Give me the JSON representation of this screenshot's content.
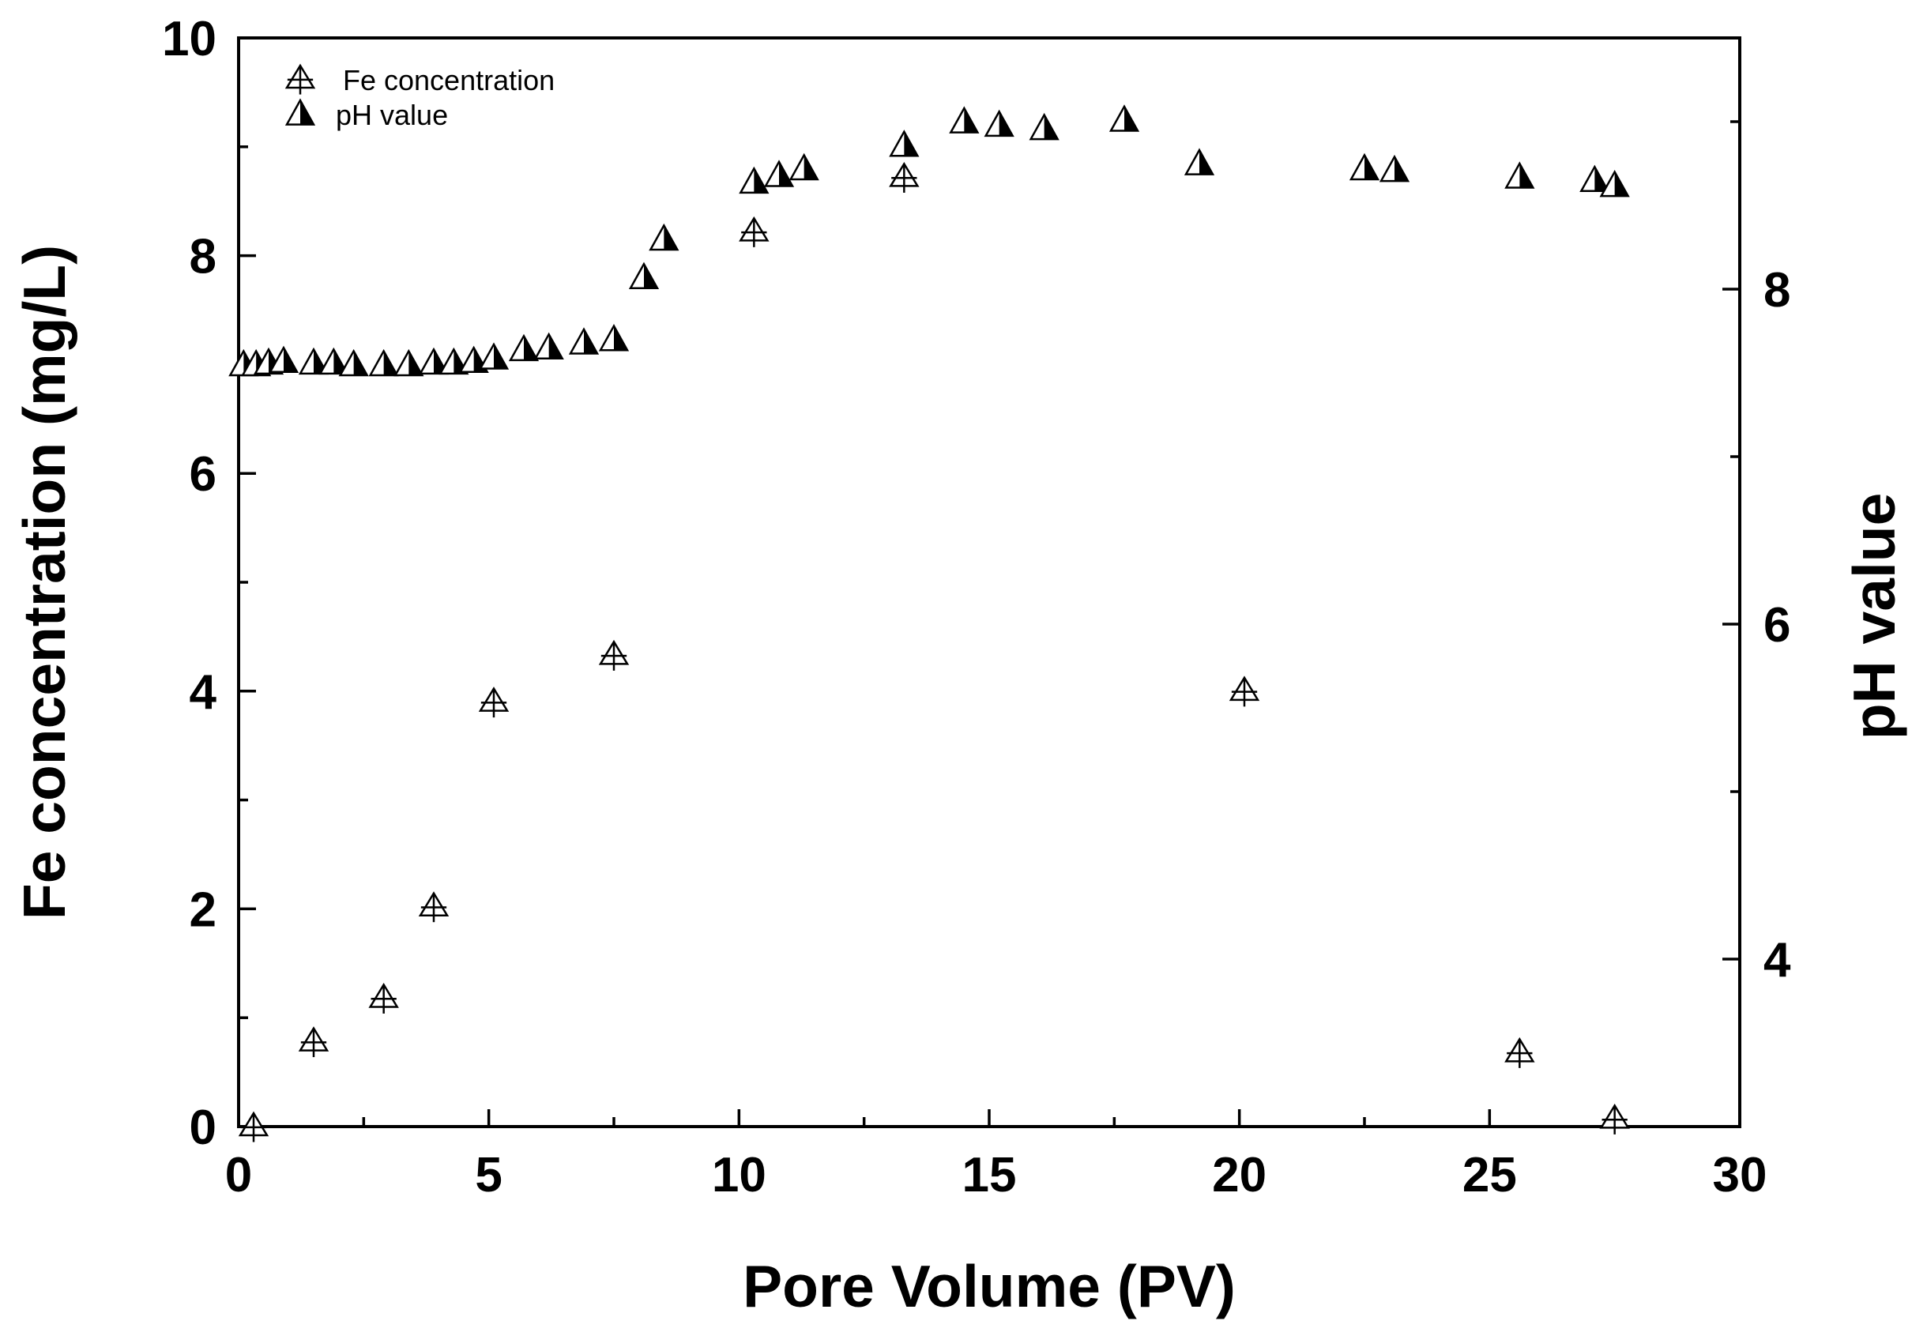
{
  "chart_data": {
    "type": "scatter",
    "title": "",
    "xlabel": "Pore Volume (PV)",
    "ylabel": "Fe concentration (mg/L)",
    "y2label": "pH value",
    "xlim": [
      0,
      30
    ],
    "ylim": [
      0,
      10
    ],
    "y2lim": [
      3,
      9.5
    ],
    "x_ticks": [
      0,
      5,
      10,
      15,
      20,
      25,
      30
    ],
    "x_tick_labels": [
      "0",
      "5",
      "10",
      "15",
      "20",
      "25",
      "30"
    ],
    "y_ticks": [
      0,
      2,
      4,
      6,
      8,
      10
    ],
    "y_tick_labels": [
      "0",
      "2",
      "4",
      "6",
      "8",
      "10"
    ],
    "y2_ticks": [
      4,
      6,
      8
    ],
    "y2_tick_labels": [
      "4",
      "6",
      "8"
    ],
    "legend_position": "top-left",
    "series": [
      {
        "name": "Fe concentration",
        "axis": "left",
        "marker": "open-triangle-cross",
        "x": [
          0.3,
          1.5,
          2.9,
          3.9,
          5.1,
          7.5,
          10.3,
          13.3,
          20.1,
          25.6,
          27.5
        ],
        "y": [
          0.0,
          0.78,
          1.18,
          2.02,
          3.9,
          4.33,
          8.22,
          8.72,
          4.0,
          0.68,
          0.07
        ]
      },
      {
        "name": "pH value",
        "axis": "right",
        "marker": "half-filled-triangle",
        "x": [
          0.1,
          0.35,
          0.6,
          0.9,
          1.5,
          1.9,
          2.3,
          2.9,
          3.4,
          3.9,
          4.3,
          4.7,
          5.1,
          5.7,
          6.2,
          6.9,
          7.5,
          8.1,
          8.5,
          10.3,
          10.8,
          11.3,
          13.3,
          14.5,
          15.2,
          16.1,
          17.7,
          19.2,
          22.5,
          23.1,
          25.6,
          27.1,
          27.5
        ],
        "y": [
          7.55,
          7.55,
          7.56,
          7.57,
          7.56,
          7.56,
          7.55,
          7.55,
          7.55,
          7.56,
          7.56,
          7.57,
          7.59,
          7.64,
          7.65,
          7.68,
          7.7,
          8.07,
          8.3,
          8.64,
          8.68,
          8.72,
          8.86,
          9.0,
          8.98,
          8.96,
          9.01,
          8.75,
          8.72,
          8.71,
          8.67,
          8.65,
          8.62
        ]
      }
    ]
  }
}
